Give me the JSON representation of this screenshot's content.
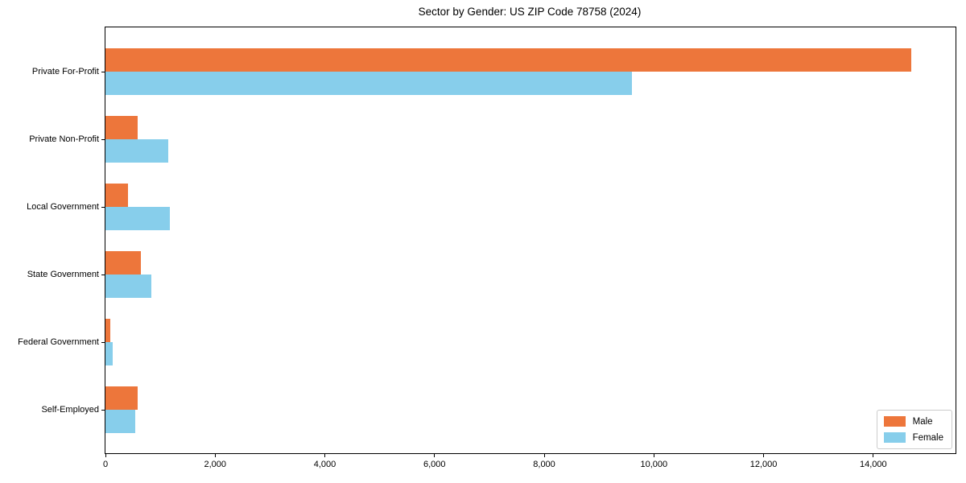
{
  "chart_data": {
    "type": "bar",
    "orientation": "horizontal",
    "title": "Sector by Gender: US ZIP Code 78758 (2024)",
    "categories": [
      "Private For-Profit",
      "Private Non-Profit",
      "Local Government",
      "State Government",
      "Federal Government",
      "Self-Employed"
    ],
    "series": [
      {
        "name": "Male",
        "color": "#ED763B",
        "values": [
          14700,
          590,
          410,
          640,
          90,
          590
        ]
      },
      {
        "name": "Female",
        "color": "#87CEEB",
        "values": [
          9600,
          1140,
          1170,
          830,
          130,
          550
        ]
      }
    ],
    "xlabel": "",
    "ylabel": "",
    "xlim": [
      0,
      15500
    ],
    "xticks": [
      0,
      2000,
      4000,
      6000,
      8000,
      10000,
      12000,
      14000
    ],
    "xtick_labels": [
      "0",
      "2,000",
      "4,000",
      "6,000",
      "8,000",
      "10,000",
      "12,000",
      "14,000"
    ],
    "grid": false,
    "legend": {
      "position": "lower right",
      "entries": [
        "Male",
        "Female"
      ]
    },
    "colors": {
      "male": "#ED763B",
      "female": "#87CEEB",
      "spine": "#000000",
      "background": "#ffffff",
      "legend_border": "#cccccc"
    }
  }
}
